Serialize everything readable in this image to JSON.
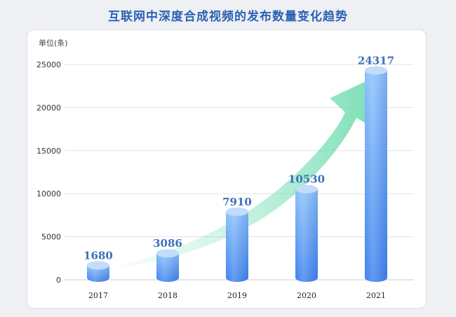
{
  "title": "互联网中深度合成视频的发布数量变化趋势",
  "unit_label": "单位(条)",
  "colors": {
    "title": "#2b62b4",
    "bar_top": "#8cc2fb",
    "bar_bottom": "#3f82ee",
    "arrow": "#7ee0b8",
    "label": "#3b6fbd"
  },
  "chart_data": {
    "type": "bar",
    "title": "互联网中深度合成视频的发布数量变化趋势",
    "ylabel": "单位(条)",
    "xlabel": "",
    "categories": [
      "2017",
      "2018",
      "2019",
      "2020",
      "2021"
    ],
    "values": [
      1680,
      3086,
      7910,
      10530,
      24317
    ],
    "ylim": [
      0,
      25000
    ],
    "yticks": [
      0,
      5000,
      10000,
      15000,
      20000,
      25000
    ],
    "grid": true,
    "legend": "none",
    "annotation": "rising-trend-arrow"
  }
}
